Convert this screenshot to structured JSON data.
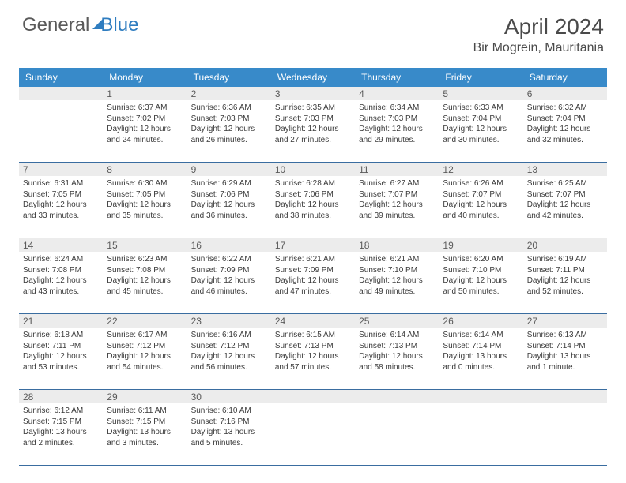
{
  "logo": {
    "general": "General",
    "blue": "Blue"
  },
  "title": {
    "month": "April 2024",
    "location": "Bir Mogrein, Mauritania"
  },
  "colors": {
    "header_bg": "#388ac9",
    "daynum_bg": "#ececec",
    "border": "#3a6da0",
    "text": "#3a3a3a"
  },
  "dayHeaders": [
    "Sunday",
    "Monday",
    "Tuesday",
    "Wednesday",
    "Thursday",
    "Friday",
    "Saturday"
  ],
  "weeks": [
    [
      {
        "day": "",
        "lines": []
      },
      {
        "day": "1",
        "lines": [
          "Sunrise: 6:37 AM",
          "Sunset: 7:02 PM",
          "Daylight: 12 hours",
          "and 24 minutes."
        ]
      },
      {
        "day": "2",
        "lines": [
          "Sunrise: 6:36 AM",
          "Sunset: 7:03 PM",
          "Daylight: 12 hours",
          "and 26 minutes."
        ]
      },
      {
        "day": "3",
        "lines": [
          "Sunrise: 6:35 AM",
          "Sunset: 7:03 PM",
          "Daylight: 12 hours",
          "and 27 minutes."
        ]
      },
      {
        "day": "4",
        "lines": [
          "Sunrise: 6:34 AM",
          "Sunset: 7:03 PM",
          "Daylight: 12 hours",
          "and 29 minutes."
        ]
      },
      {
        "day": "5",
        "lines": [
          "Sunrise: 6:33 AM",
          "Sunset: 7:04 PM",
          "Daylight: 12 hours",
          "and 30 minutes."
        ]
      },
      {
        "day": "6",
        "lines": [
          "Sunrise: 6:32 AM",
          "Sunset: 7:04 PM",
          "Daylight: 12 hours",
          "and 32 minutes."
        ]
      }
    ],
    [
      {
        "day": "7",
        "lines": [
          "Sunrise: 6:31 AM",
          "Sunset: 7:05 PM",
          "Daylight: 12 hours",
          "and 33 minutes."
        ]
      },
      {
        "day": "8",
        "lines": [
          "Sunrise: 6:30 AM",
          "Sunset: 7:05 PM",
          "Daylight: 12 hours",
          "and 35 minutes."
        ]
      },
      {
        "day": "9",
        "lines": [
          "Sunrise: 6:29 AM",
          "Sunset: 7:06 PM",
          "Daylight: 12 hours",
          "and 36 minutes."
        ]
      },
      {
        "day": "10",
        "lines": [
          "Sunrise: 6:28 AM",
          "Sunset: 7:06 PM",
          "Daylight: 12 hours",
          "and 38 minutes."
        ]
      },
      {
        "day": "11",
        "lines": [
          "Sunrise: 6:27 AM",
          "Sunset: 7:07 PM",
          "Daylight: 12 hours",
          "and 39 minutes."
        ]
      },
      {
        "day": "12",
        "lines": [
          "Sunrise: 6:26 AM",
          "Sunset: 7:07 PM",
          "Daylight: 12 hours",
          "and 40 minutes."
        ]
      },
      {
        "day": "13",
        "lines": [
          "Sunrise: 6:25 AM",
          "Sunset: 7:07 PM",
          "Daylight: 12 hours",
          "and 42 minutes."
        ]
      }
    ],
    [
      {
        "day": "14",
        "lines": [
          "Sunrise: 6:24 AM",
          "Sunset: 7:08 PM",
          "Daylight: 12 hours",
          "and 43 minutes."
        ]
      },
      {
        "day": "15",
        "lines": [
          "Sunrise: 6:23 AM",
          "Sunset: 7:08 PM",
          "Daylight: 12 hours",
          "and 45 minutes."
        ]
      },
      {
        "day": "16",
        "lines": [
          "Sunrise: 6:22 AM",
          "Sunset: 7:09 PM",
          "Daylight: 12 hours",
          "and 46 minutes."
        ]
      },
      {
        "day": "17",
        "lines": [
          "Sunrise: 6:21 AM",
          "Sunset: 7:09 PM",
          "Daylight: 12 hours",
          "and 47 minutes."
        ]
      },
      {
        "day": "18",
        "lines": [
          "Sunrise: 6:21 AM",
          "Sunset: 7:10 PM",
          "Daylight: 12 hours",
          "and 49 minutes."
        ]
      },
      {
        "day": "19",
        "lines": [
          "Sunrise: 6:20 AM",
          "Sunset: 7:10 PM",
          "Daylight: 12 hours",
          "and 50 minutes."
        ]
      },
      {
        "day": "20",
        "lines": [
          "Sunrise: 6:19 AM",
          "Sunset: 7:11 PM",
          "Daylight: 12 hours",
          "and 52 minutes."
        ]
      }
    ],
    [
      {
        "day": "21",
        "lines": [
          "Sunrise: 6:18 AM",
          "Sunset: 7:11 PM",
          "Daylight: 12 hours",
          "and 53 minutes."
        ]
      },
      {
        "day": "22",
        "lines": [
          "Sunrise: 6:17 AM",
          "Sunset: 7:12 PM",
          "Daylight: 12 hours",
          "and 54 minutes."
        ]
      },
      {
        "day": "23",
        "lines": [
          "Sunrise: 6:16 AM",
          "Sunset: 7:12 PM",
          "Daylight: 12 hours",
          "and 56 minutes."
        ]
      },
      {
        "day": "24",
        "lines": [
          "Sunrise: 6:15 AM",
          "Sunset: 7:13 PM",
          "Daylight: 12 hours",
          "and 57 minutes."
        ]
      },
      {
        "day": "25",
        "lines": [
          "Sunrise: 6:14 AM",
          "Sunset: 7:13 PM",
          "Daylight: 12 hours",
          "and 58 minutes."
        ]
      },
      {
        "day": "26",
        "lines": [
          "Sunrise: 6:14 AM",
          "Sunset: 7:14 PM",
          "Daylight: 13 hours",
          "and 0 minutes."
        ]
      },
      {
        "day": "27",
        "lines": [
          "Sunrise: 6:13 AM",
          "Sunset: 7:14 PM",
          "Daylight: 13 hours",
          "and 1 minute."
        ]
      }
    ],
    [
      {
        "day": "28",
        "lines": [
          "Sunrise: 6:12 AM",
          "Sunset: 7:15 PM",
          "Daylight: 13 hours",
          "and 2 minutes."
        ]
      },
      {
        "day": "29",
        "lines": [
          "Sunrise: 6:11 AM",
          "Sunset: 7:15 PM",
          "Daylight: 13 hours",
          "and 3 minutes."
        ]
      },
      {
        "day": "30",
        "lines": [
          "Sunrise: 6:10 AM",
          "Sunset: 7:16 PM",
          "Daylight: 13 hours",
          "and 5 minutes."
        ]
      },
      {
        "day": "",
        "lines": []
      },
      {
        "day": "",
        "lines": []
      },
      {
        "day": "",
        "lines": []
      },
      {
        "day": "",
        "lines": []
      }
    ]
  ]
}
